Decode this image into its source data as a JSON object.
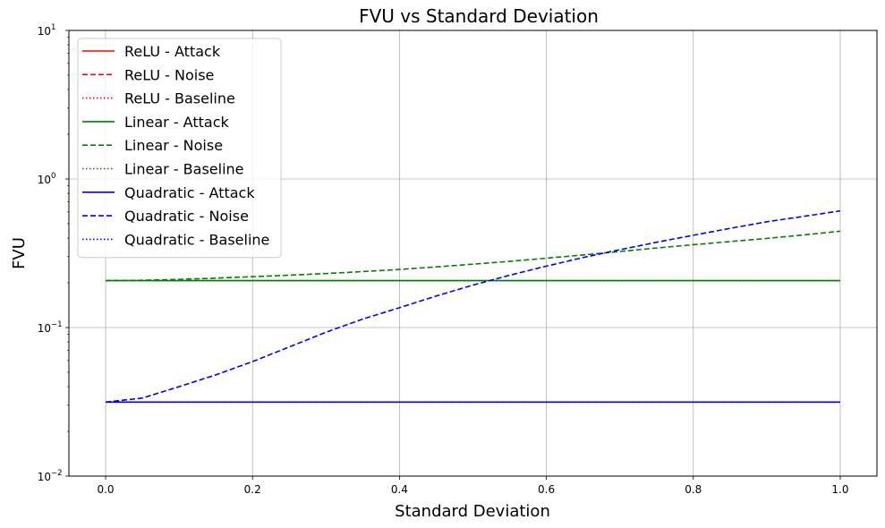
{
  "chart_data": {
    "type": "line",
    "title": "FVU vs Standard Deviation",
    "xlabel": "Standard Deviation",
    "ylabel": "FVU",
    "xlim": [
      -0.05,
      1.05
    ],
    "ylim": [
      0.01,
      10
    ],
    "yscale": "log",
    "grid": true,
    "legend_position": "top-left",
    "x_ticks": [
      {
        "value": 0.0,
        "label": "0.0"
      },
      {
        "value": 0.2,
        "label": "0.2"
      },
      {
        "value": 0.4,
        "label": "0.4"
      },
      {
        "value": 0.6,
        "label": "0.6"
      },
      {
        "value": 0.8,
        "label": "0.8"
      },
      {
        "value": 1.0,
        "label": "1.0"
      }
    ],
    "y_ticks": [
      {
        "value": 0.01,
        "base": "10",
        "exp": "−2"
      },
      {
        "value": 0.1,
        "base": "10",
        "exp": "−1"
      },
      {
        "value": 1,
        "base": "10",
        "exp": "0"
      },
      {
        "value": 10,
        "base": "10",
        "exp": "1"
      }
    ],
    "series": [
      {
        "name": "ReLU - Attack",
        "color": "#ff0000",
        "style": "solid",
        "x": [],
        "y": []
      },
      {
        "name": "ReLU - Noise",
        "color": "#ff0000",
        "style": "dashed",
        "x": [],
        "y": []
      },
      {
        "name": "ReLU - Baseline",
        "color": "#ff0000",
        "style": "dotted",
        "x": [],
        "y": []
      },
      {
        "name": "Linear - Attack",
        "color": "#008000",
        "style": "solid",
        "x": [
          0.0,
          1.0
        ],
        "y": [
          0.207,
          0.207
        ]
      },
      {
        "name": "Linear - Noise",
        "color": "#008000",
        "style": "dashed",
        "x": [
          0.0,
          0.05,
          0.1,
          0.15,
          0.2,
          0.25,
          0.3,
          0.35,
          0.4,
          0.45,
          0.5,
          0.55,
          0.6,
          0.65,
          0.7,
          0.75,
          0.8,
          0.85,
          0.9,
          0.95,
          1.0
        ],
        "y": [
          0.207,
          0.208,
          0.211,
          0.215,
          0.22,
          0.225,
          0.231,
          0.238,
          0.246,
          0.256,
          0.267,
          0.279,
          0.293,
          0.308,
          0.325,
          0.343,
          0.361,
          0.379,
          0.398,
          0.42,
          0.445
        ]
      },
      {
        "name": "Linear - Baseline",
        "color": "#008000",
        "style": "dotted",
        "x": [
          0.0,
          1.0
        ],
        "y": [
          0.207,
          0.207
        ]
      },
      {
        "name": "Quadratic - Attack",
        "color": "#0000ff",
        "style": "solid",
        "x": [
          0.0,
          1.0
        ],
        "y": [
          0.0315,
          0.0315
        ]
      },
      {
        "name": "Quadratic - Noise",
        "color": "#0000ff",
        "style": "dashed",
        "x": [
          0.0,
          0.05,
          0.1,
          0.15,
          0.2,
          0.25,
          0.3,
          0.35,
          0.4,
          0.45,
          0.5,
          0.55,
          0.6,
          0.65,
          0.7,
          0.75,
          0.8,
          0.85,
          0.9,
          0.95,
          1.0
        ],
        "y": [
          0.0315,
          0.0335,
          0.04,
          0.048,
          0.059,
          0.074,
          0.093,
          0.114,
          0.136,
          0.163,
          0.193,
          0.225,
          0.259,
          0.296,
          0.334,
          0.375,
          0.418,
          0.465,
          0.515,
          0.56,
          0.61
        ]
      },
      {
        "name": "Quadratic - Baseline",
        "color": "#0000ff",
        "style": "dotted",
        "x": [
          0.0,
          1.0
        ],
        "y": [
          0.0315,
          0.0315
        ]
      }
    ]
  }
}
